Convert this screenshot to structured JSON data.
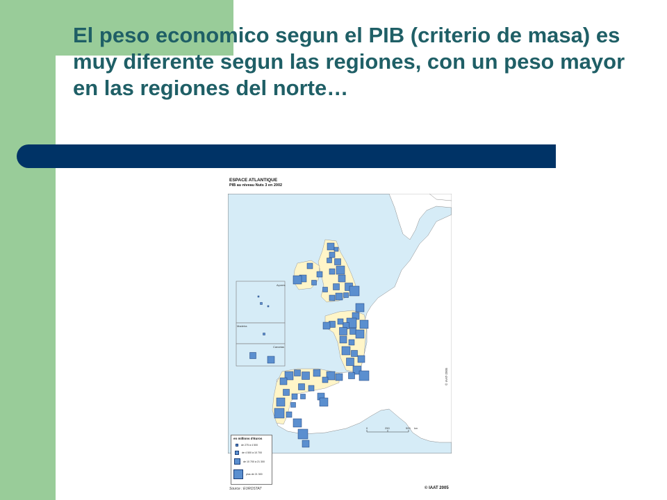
{
  "slide": {
    "title": "El peso economico segun el PIB (criterio de masa) es muy diferente segun las regiones, con un peso mayor en las regiones del norte…"
  },
  "map": {
    "title": "ESPACE ATLANTIQUE",
    "subtitle": "PIB au niveau Nuts 3 en 2002",
    "inset_labels": {
      "azores": "Açores",
      "madeira": "Madeira",
      "canarias": "Canarias"
    },
    "scale": {
      "labels": [
        "0",
        "250",
        "500"
      ],
      "unit": "km"
    },
    "vertical_credit": "© IAAT-2005",
    "legend": {
      "title": "en millions d'Euros",
      "items": [
        {
          "label": "de 275 à 4 500"
        },
        {
          "label": "de 4 500 à 10 700"
        },
        {
          "label": "de 10 700 à 21 300"
        },
        {
          "label": "plus de 21 300"
        }
      ]
    },
    "source": "Source : EUROSTAT",
    "copyright": "© IAAT 2005",
    "colors": {
      "sea": "#d6ecf7",
      "atlantic_region": "#fff5c8",
      "other_land": "#ffffff",
      "symbol": "#5b8fcf",
      "symbol_border": "#1a3d78"
    }
  }
}
